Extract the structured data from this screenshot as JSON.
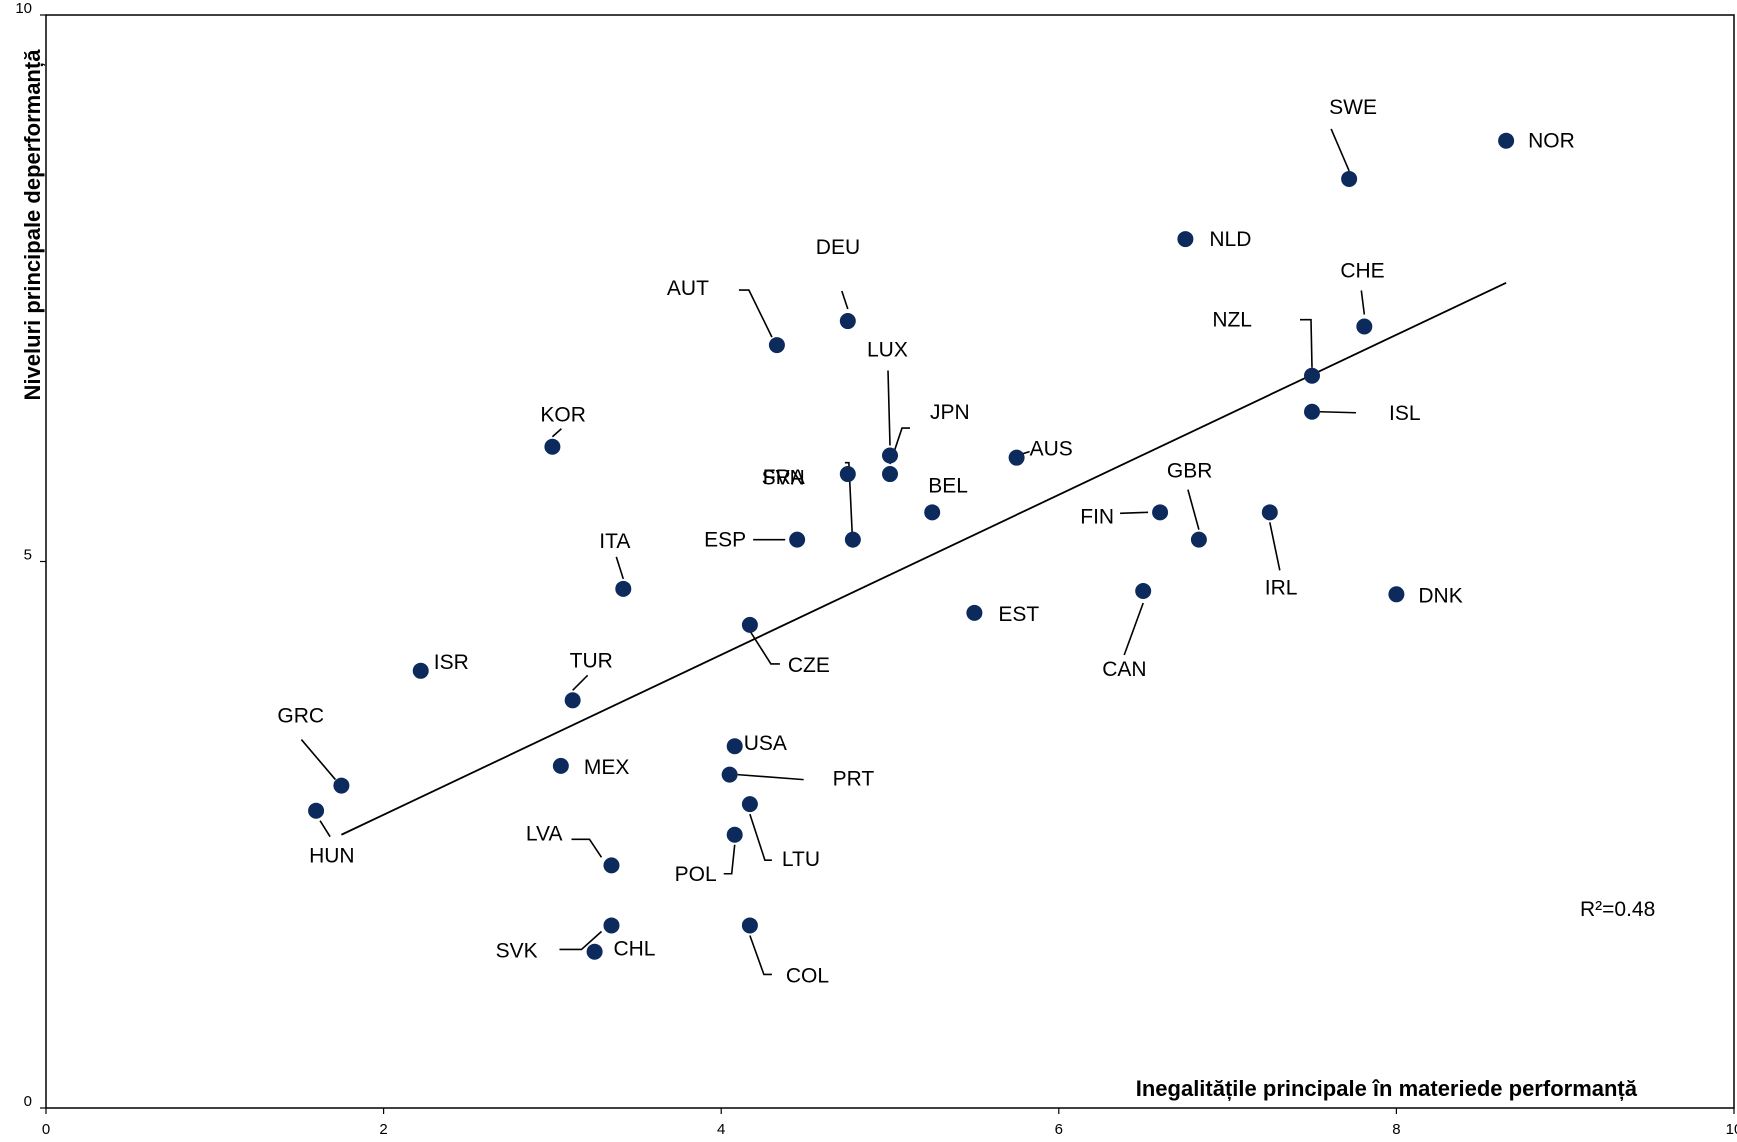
{
  "chart_data": {
    "type": "scatter",
    "title": "",
    "xlabel": "Inegalitățile principale în materiede performanță",
    "ylabel": "Niveluri principale deperformanță",
    "xlim": [
      0,
      10
    ],
    "ylim": [
      0,
      10
    ],
    "xticks": [
      "0",
      "2",
      "4",
      "6",
      "8",
      "10"
    ],
    "yticks": [
      "0",
      "5",
      "10"
    ],
    "grid": false,
    "marker_color": "#0d2a5c",
    "annotation_text": "R²=0.48",
    "trendline": {
      "x": [
        1.75,
        8.65
      ],
      "y": [
        2.5,
        7.55
      ]
    },
    "points": [
      {
        "label": "NOR",
        "x": 8.65,
        "y": 8.85
      },
      {
        "label": "SWE",
        "x": 7.72,
        "y": 8.5
      },
      {
        "label": "NLD",
        "x": 6.75,
        "y": 7.95
      },
      {
        "label": "CHE",
        "x": 7.81,
        "y": 7.15
      },
      {
        "label": "NZL",
        "x": 7.5,
        "y": 6.7
      },
      {
        "label": "ISL",
        "x": 7.5,
        "y": 6.37
      },
      {
        "label": "DEU",
        "x": 4.75,
        "y": 7.2
      },
      {
        "label": "AUT",
        "x": 4.33,
        "y": 6.98
      },
      {
        "label": "LUX",
        "x": 5.0,
        "y": 5.97
      },
      {
        "label": "JPN",
        "x": 5.0,
        "y": 5.8
      },
      {
        "label": "SVN",
        "x": 4.78,
        "y": 5.2
      },
      {
        "label": "FRA",
        "x": 4.75,
        "y": 5.8
      },
      {
        "label": "KOR",
        "x": 3.0,
        "y": 6.05
      },
      {
        "label": "AUS",
        "x": 5.75,
        "y": 5.95
      },
      {
        "label": "BEL",
        "x": 5.25,
        "y": 5.45
      },
      {
        "label": "GBR",
        "x": 6.83,
        "y": 5.2
      },
      {
        "label": "FIN",
        "x": 6.6,
        "y": 5.45
      },
      {
        "label": "IRL",
        "x": 7.25,
        "y": 5.45
      },
      {
        "label": "ESP",
        "x": 4.45,
        "y": 5.2
      },
      {
        "label": "ITA",
        "x": 3.42,
        "y": 4.75
      },
      {
        "label": "CAN",
        "x": 6.5,
        "y": 4.73
      },
      {
        "label": "DNK",
        "x": 8.0,
        "y": 4.7
      },
      {
        "label": "EST",
        "x": 5.5,
        "y": 4.53
      },
      {
        "label": "CZE",
        "x": 4.17,
        "y": 4.42
      },
      {
        "label": "ISR",
        "x": 2.22,
        "y": 4.0
      },
      {
        "label": "TUR",
        "x": 3.12,
        "y": 3.73
      },
      {
        "label": "GRC",
        "x": 1.75,
        "y": 2.95
      },
      {
        "label": "HUN",
        "x": 1.6,
        "y": 2.72
      },
      {
        "label": "MEX",
        "x": 3.05,
        "y": 3.13
      },
      {
        "label": "USA",
        "x": 4.08,
        "y": 3.31
      },
      {
        "label": "PRT",
        "x": 4.05,
        "y": 3.05
      },
      {
        "label": "LTU",
        "x": 4.17,
        "y": 2.78
      },
      {
        "label": "POL",
        "x": 4.08,
        "y": 2.5
      },
      {
        "label": "LVA",
        "x": 3.35,
        "y": 2.22
      },
      {
        "label": "CHL",
        "x": 3.35,
        "y": 1.67
      },
      {
        "label": "SVK",
        "x": 3.25,
        "y": 1.43
      },
      {
        "label": "COL",
        "x": 4.17,
        "y": 1.67
      }
    ]
  }
}
